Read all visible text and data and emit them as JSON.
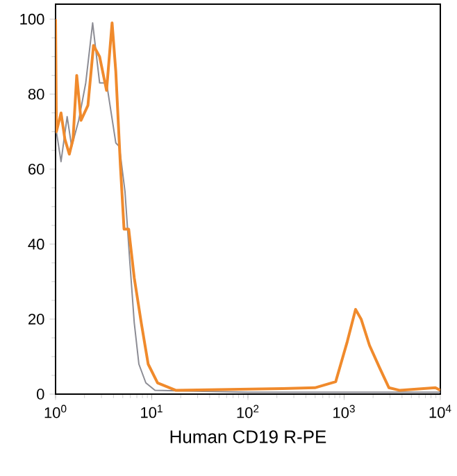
{
  "chart_data": {
    "type": "line",
    "xlabel": "Human CD19  R-PE",
    "log": "x",
    "xlim": [
      1,
      10000
    ],
    "ylim": [
      0,
      104
    ],
    "xticks": [
      {
        "value": 1,
        "label": "10$^{0}$"
      },
      {
        "value": 10,
        "label": "10$^{1}$"
      },
      {
        "value": 100,
        "label": "10$^{2}$"
      },
      {
        "value": 1000,
        "label": "10$^{3}$"
      },
      {
        "value": 10000,
        "label": "10$^{4}$"
      }
    ],
    "yticks": [
      0,
      20,
      40,
      60,
      80,
      100
    ],
    "marker": "none",
    "line_style": "solid",
    "series": [
      {
        "color": "#8c8c94",
        "x": [
          1,
          1.02,
          1.14,
          1.32,
          1.47,
          1.74,
          2.06,
          2.43,
          2.87,
          3.39,
          4.23,
          4.61,
          5.27,
          5.89,
          6.58,
          7.35,
          8.68,
          10.8,
          100,
          10000
        ],
        "values": [
          100,
          70,
          62,
          74,
          66,
          73,
          83,
          99,
          83,
          83,
          67,
          66,
          54,
          36,
          19,
          8,
          3,
          1,
          0.5,
          0.5
        ]
      },
      {
        "color": "#f08a2c",
        "x": [
          1,
          1.02,
          1.14,
          1.25,
          1.39,
          1.52,
          1.66,
          1.84,
          2.17,
          2.48,
          2.87,
          3.39,
          3.87,
          4.23,
          4.72,
          5.15,
          5.76,
          6.58,
          7.78,
          9.18,
          11.5,
          17.9,
          229,
          497,
          817,
          1078,
          1316,
          1503,
          1836,
          2339,
          2924,
          3800,
          8900,
          10000
        ],
        "values": [
          100,
          70,
          75,
          68,
          64,
          68,
          85,
          73,
          77,
          93,
          90,
          81,
          99,
          86,
          61,
          44,
          44,
          31,
          19,
          8,
          3,
          1,
          1.5,
          1.7,
          3.3,
          14,
          22.6,
          20,
          13,
          7,
          1.7,
          1,
          1.7,
          1
        ]
      }
    ]
  }
}
